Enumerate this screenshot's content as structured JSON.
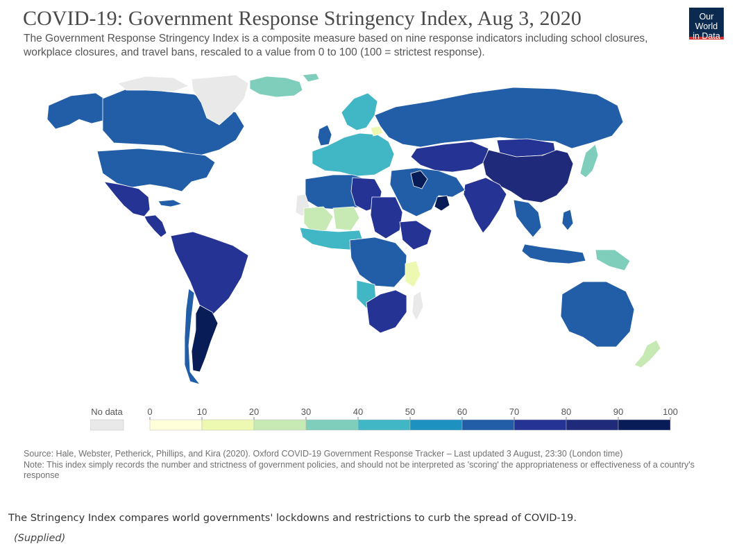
{
  "figure": {
    "title": "COVID-19: Government Response Stringency Index, Aug 3, 2020",
    "subtitle": "The Government Response Stringency Index is a composite measure based on nine response indicators including school closures, workplace closures, and travel bans, rescaled to a value from 0 to 100 (100 = strictest response).",
    "logo_line1": "Our World",
    "logo_line2": "in Data",
    "source": "Source: Hale, Webster, Petherick, Phillips, and Kira (2020). Oxford COVID-19 Government Response Tracker – Last updated 3 August, 23:30 (London time)",
    "note": "Note: This index simply records the number and strictness of government policies, and should not be interpreted as 'scoring' the appropriateness or effectiveness of a country's response"
  },
  "legend": {
    "no_data_label": "No data",
    "no_data_color": "#e9e9e9",
    "ticks": [
      "0",
      "10",
      "20",
      "30",
      "40",
      "50",
      "60",
      "70",
      "80",
      "90",
      "100"
    ],
    "colors": [
      "#ffffd9",
      "#edf8b1",
      "#c7e9b4",
      "#7fcdbb",
      "#41b6c4",
      "#1d91c0",
      "#225ea8",
      "#253494",
      "#1f2a7a",
      "#081d58"
    ]
  },
  "caption": {
    "text": "The Stringency Index compares world governments' lockdowns and restrictions to curb the spread of COVID-19.",
    "credit": "(Supplied)"
  },
  "regions": [
    {
      "name": "Canada",
      "color": "#225ea8"
    },
    {
      "name": "Alaska",
      "color": "#225ea8"
    },
    {
      "name": "Greenland",
      "color": "#e9e9e9"
    },
    {
      "name": "Arctic Archipelago",
      "color": "#e9e9e9"
    },
    {
      "name": "United States",
      "color": "#225ea8"
    },
    {
      "name": "Mexico",
      "color": "#253494"
    },
    {
      "name": "Central America",
      "color": "#253494"
    },
    {
      "name": "Cuba",
      "color": "#225ea8"
    },
    {
      "name": "South America",
      "color": "#253494"
    },
    {
      "name": "Argentina",
      "color": "#081d58"
    },
    {
      "name": "Chile",
      "color": "#225ea8"
    },
    {
      "name": "Iceland",
      "color": "#7fcdbb"
    },
    {
      "name": "Svalbard",
      "color": "#7fcdbb"
    },
    {
      "name": "United Kingdom",
      "color": "#225ea8"
    },
    {
      "name": "Scandinavia",
      "color": "#41b6c4"
    },
    {
      "name": "Europe",
      "color": "#41b6c4"
    },
    {
      "name": "Belarus",
      "color": "#edf8b1"
    },
    {
      "name": "Russia",
      "color": "#225ea8"
    },
    {
      "name": "Central Asia",
      "color": "#253494"
    },
    {
      "name": "China",
      "color": "#1f2a7a"
    },
    {
      "name": "Mongolia",
      "color": "#253494"
    },
    {
      "name": "India",
      "color": "#253494"
    },
    {
      "name": "Middle East",
      "color": "#225ea8"
    },
    {
      "name": "Iraq",
      "color": "#081d58"
    },
    {
      "name": "Oman",
      "color": "#081d58"
    },
    {
      "name": "Southeast Asia",
      "color": "#225ea8"
    },
    {
      "name": "Japan",
      "color": "#7fcdbb"
    },
    {
      "name": "Indonesia",
      "color": "#225ea8"
    },
    {
      "name": "Papua New Guinea",
      "color": "#7fcdbb"
    },
    {
      "name": "Philippines",
      "color": "#225ea8"
    },
    {
      "name": "North Africa",
      "color": "#225ea8"
    },
    {
      "name": "Libya",
      "color": "#253494"
    },
    {
      "name": "Western Sahara",
      "color": "#e9e9e9"
    },
    {
      "name": "Mali",
      "color": "#c7e9b4"
    },
    {
      "name": "Niger",
      "color": "#c7e9b4"
    },
    {
      "name": "West Africa",
      "color": "#41b6c4"
    },
    {
      "name": "Sudan",
      "color": "#253494"
    },
    {
      "name": "Central Africa",
      "color": "#225ea8"
    },
    {
      "name": "Ethiopia",
      "color": "#253494"
    },
    {
      "name": "Tanzania",
      "color": "#edf8b1"
    },
    {
      "name": "Angola",
      "color": "#41b6c4"
    },
    {
      "name": "Southern Africa",
      "color": "#253494"
    },
    {
      "name": "Madagascar",
      "color": "#e9e9e9"
    },
    {
      "name": "Australia",
      "color": "#225ea8"
    },
    {
      "name": "New Zealand",
      "color": "#c7e9b4"
    }
  ]
}
